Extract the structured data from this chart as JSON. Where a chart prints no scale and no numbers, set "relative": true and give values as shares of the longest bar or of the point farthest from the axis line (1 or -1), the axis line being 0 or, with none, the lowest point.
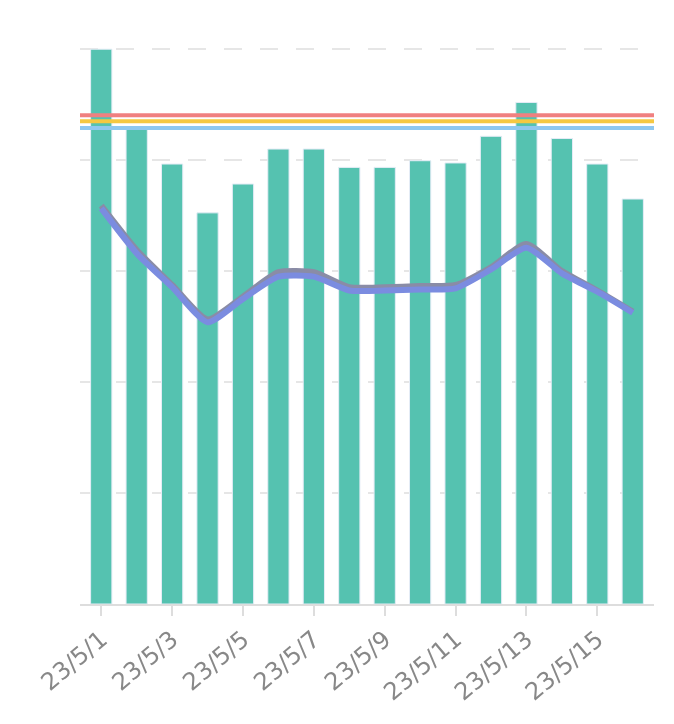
{
  "chart_data": {
    "type": "bar",
    "relative": true,
    "categories": [
      "23/5/1",
      null,
      "23/5/3",
      null,
      "23/5/5",
      null,
      "23/5/7",
      null,
      "23/5/9",
      null,
      "23/5/11",
      null,
      "23/5/13",
      null,
      "23/5/15",
      null
    ],
    "series": [
      {
        "color": "#55c2b0",
        "values": [
          1,
          0.858,
          0.793,
          0.705,
          0.757,
          0.82,
          0.82,
          0.787,
          0.787,
          0.799,
          0.795,
          0.843,
          0.904,
          0.839,
          0.793,
          0.73
        ]
      },
      {
        "type": "line",
        "color": "#8a8ca6",
        "values": [
          0.718,
          0.638,
          0.575,
          0.513,
          0.554,
          0.598,
          0.598,
          0.571,
          0.571,
          0.573,
          0.575,
          0.607,
          0.649,
          0.6,
          0.565,
          0.527
        ]
      },
      {
        "type": "line",
        "color": "#7b8ce0",
        "values": [
          0.713,
          0.632,
          0.571,
          0.508,
          0.55,
          0.59,
          0.59,
          0.565,
          0.565,
          0.567,
          0.569,
          0.603,
          0.642,
          0.596,
          0.563,
          0.525
        ]
      }
    ],
    "ref_lines": [
      {
        "axis": "y",
        "value": 0.881,
        "color": "#f08080"
      },
      {
        "axis": "y",
        "value": 0.87,
        "color": "#f5c842"
      },
      {
        "axis": "y",
        "value": 0.858,
        "color": "#8ec8f0"
      }
    ],
    "grid": "y",
    "marker": "none",
    "line_style": "solid"
  }
}
